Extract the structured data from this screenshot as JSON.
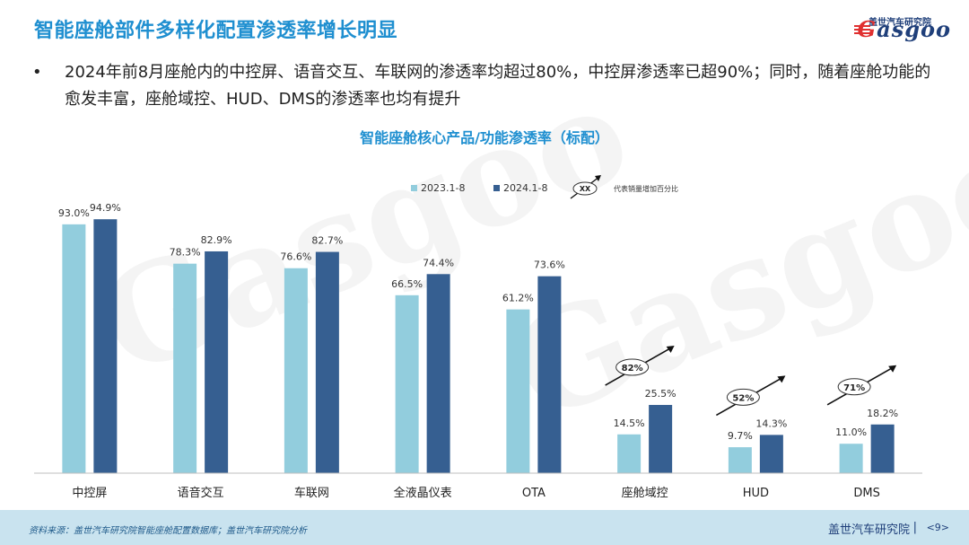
{
  "header": {
    "title": "智能座舱部件多样化配置渗透率增长明显",
    "logo_cn": "盖世汽车研究院",
    "logo_en": "asgoo",
    "logo_en_initial": "G"
  },
  "bullet": {
    "dot": "•",
    "text": "2024年前8月座舱内的中控屏、语音交互、车联网的渗透率均超过80%，中控屏渗透率已超90%；同时，随着座舱功能的愈发丰富，座舱域控、HUD、DMS的渗透率也均有提升"
  },
  "chart_data": {
    "type": "bar",
    "title": "智能座舱核心产品/功能渗透率（标配）",
    "categories": [
      "中控屏",
      "语音交互",
      "车联网",
      "全液晶仪表",
      "OTA",
      "座舱域控",
      "HUD",
      "DMS"
    ],
    "series": [
      {
        "name": "2023.1-8",
        "values": [
          93.0,
          78.3,
          76.6,
          66.5,
          61.2,
          14.5,
          9.7,
          11.0
        ],
        "color": "#92cddd"
      },
      {
        "name": "2024.1-8",
        "values": [
          94.9,
          82.9,
          82.7,
          74.4,
          73.6,
          25.5,
          14.3,
          18.2
        ],
        "color": "#365f91"
      }
    ],
    "value_labels": {
      "s0": [
        "93.0%",
        "78.3%",
        "76.6%",
        "66.5%",
        "61.2%",
        "14.5%",
        "9.7%",
        "11.0%"
      ],
      "s1": [
        "94.9%",
        "82.9%",
        "82.7%",
        "74.4%",
        "73.6%",
        "25.5%",
        "14.3%",
        "18.2%"
      ]
    },
    "ylim": [
      0,
      100
    ],
    "grid": false,
    "legend": {
      "position": "top-right",
      "growth_key_symbol": "XX",
      "growth_key_text": "代表销量增加百分比"
    },
    "growth_annotations": [
      {
        "category": "座舱域控",
        "label": "82%"
      },
      {
        "category": "HUD",
        "label": "52%"
      },
      {
        "category": "DMS",
        "label": "71%"
      }
    ]
  },
  "footer": {
    "source": "资料来源：盖世汽车研究院智能座舱配置数据库；盖世汽车研究院分析",
    "brand": "盖世汽车研究院",
    "separator": "|",
    "page": "<9>"
  },
  "colors": {
    "accent": "#1f8fd0",
    "brand_dark": "#1f3f7a",
    "footer_bg": "#c9e3ef",
    "logo_red": "#e03030"
  }
}
